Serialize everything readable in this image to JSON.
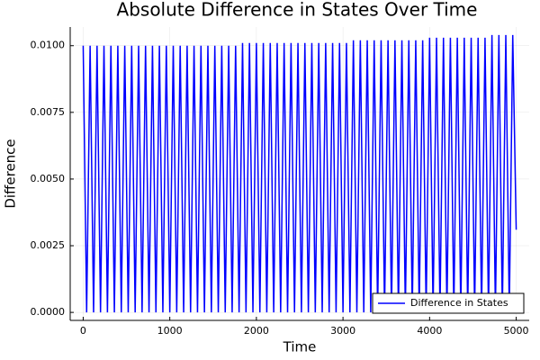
{
  "chart_data": {
    "type": "line",
    "title": "Absolute Difference in States Over Time",
    "x_label": "Time",
    "y_label": "Difference",
    "x": [
      0,
      40,
      80,
      120,
      160,
      200,
      240,
      280,
      320,
      360,
      400,
      440,
      480,
      520,
      560,
      600,
      640,
      680,
      720,
      760,
      800,
      840,
      880,
      920,
      960,
      1000,
      1040,
      1080,
      1120,
      1160,
      1200,
      1240,
      1280,
      1320,
      1360,
      1400,
      1440,
      1480,
      1520,
      1560,
      1600,
      1640,
      1680,
      1720,
      1760,
      1800,
      1840,
      1880,
      1920,
      1960,
      2000,
      2040,
      2080,
      2120,
      2160,
      2200,
      2240,
      2280,
      2320,
      2360,
      2400,
      2440,
      2480,
      2520,
      2560,
      2600,
      2640,
      2680,
      2720,
      2760,
      2800,
      2840,
      2880,
      2920,
      2960,
      3000,
      3040,
      3080,
      3120,
      3160,
      3200,
      3240,
      3280,
      3320,
      3360,
      3400,
      3440,
      3480,
      3520,
      3560,
      3600,
      3640,
      3680,
      3720,
      3760,
      3800,
      3840,
      3880,
      3920,
      3960,
      4000,
      4040,
      4080,
      4120,
      4160,
      4200,
      4240,
      4280,
      4320,
      4360,
      4400,
      4440,
      4480,
      4520,
      4560,
      4600,
      4640,
      4680,
      4720,
      4760,
      4800,
      4840,
      4880,
      4920,
      4960,
      5000
    ],
    "series": [
      {
        "name": "Difference in States",
        "color": "#0000ff",
        "values": [
          0.01,
          0,
          0.01,
          0,
          0.01,
          0,
          0.01,
          0,
          0.01,
          0,
          0.01,
          0,
          0.01,
          0,
          0.01,
          0,
          0.01,
          0,
          0.01,
          0,
          0.01,
          0,
          0.01,
          0,
          0.01,
          0,
          0.01,
          0,
          0.01,
          0,
          0.01,
          0,
          0.01,
          0,
          0.01,
          0,
          0.01,
          0,
          0.01,
          0,
          0.01,
          0,
          0.01,
          0,
          0.01,
          0,
          0.0101,
          0,
          0.0101,
          0,
          0.0101,
          0,
          0.0101,
          0,
          0.0101,
          0,
          0.0101,
          0,
          0.0101,
          0,
          0.0101,
          0,
          0.0101,
          0,
          0.0101,
          0,
          0.0101,
          0,
          0.0101,
          0,
          0.0101,
          0,
          0.0101,
          0,
          0.0101,
          0,
          0.0101,
          0,
          0.0102,
          0,
          0.0102,
          0,
          0.0102,
          0,
          0.0102,
          0,
          0.0102,
          0,
          0.0102,
          0,
          0.0102,
          0,
          0.0102,
          0,
          0.0102,
          0,
          0.0102,
          0,
          0.0102,
          0,
          0.0103,
          0,
          0.0103,
          0,
          0.0103,
          0,
          0.0103,
          0,
          0.0103,
          0,
          0.0103,
          0,
          0.0103,
          0,
          0.0103,
          0,
          0.0103,
          0,
          0.0104,
          0,
          0.0104,
          0,
          0.0104,
          0,
          0.0104,
          0.0031
        ]
      }
    ],
    "xlim": [
      -150,
      5150
    ],
    "xticks": [
      0,
      1000,
      2000,
      3000,
      4000,
      5000
    ],
    "ylim": [
      -0.0003,
      0.0107
    ],
    "yticks": [
      {
        "value": 0,
        "label": "0.0000"
      },
      {
        "value": 0.0025,
        "label": "0.0025"
      },
      {
        "value": 0.005,
        "label": "0.0050"
      },
      {
        "value": 0.0075,
        "label": "0.0075"
      },
      {
        "value": 0.01,
        "label": "0.0100"
      }
    ],
    "grid": true,
    "legend": "bottom-right"
  }
}
